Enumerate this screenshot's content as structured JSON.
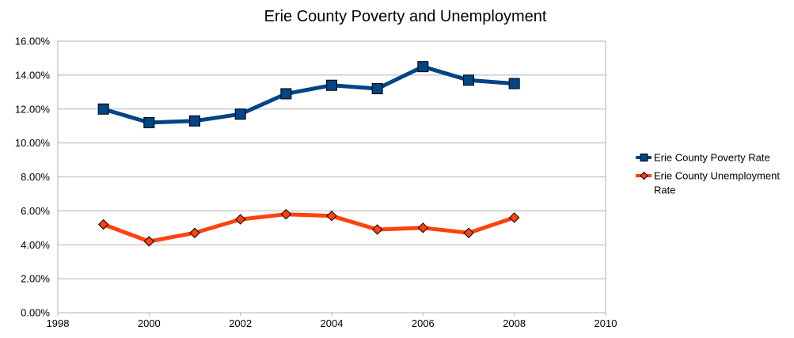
{
  "chart_data": {
    "type": "line",
    "title": "Erie County Poverty and Unemployment",
    "xlabel": "",
    "ylabel": "",
    "xlim": [
      1998,
      2010
    ],
    "ylim": [
      0,
      0.16
    ],
    "x_ticks": [
      1998,
      2000,
      2002,
      2004,
      2006,
      2008,
      2010
    ],
    "x_tick_labels": [
      "1998",
      "2000",
      "2002",
      "2004",
      "2006",
      "2008",
      "2010"
    ],
    "y_ticks": [
      0,
      0.02,
      0.04,
      0.06,
      0.08,
      0.1,
      0.12,
      0.14,
      0.16
    ],
    "y_tick_labels": [
      "0.00%",
      "2.00%",
      "4.00%",
      "6.00%",
      "8.00%",
      "10.00%",
      "12.00%",
      "14.00%",
      "16.00%"
    ],
    "grid": "horizontal",
    "legend_position": "right",
    "x": [
      1999,
      2000,
      2001,
      2002,
      2003,
      2004,
      2005,
      2006,
      2007,
      2008
    ],
    "series": [
      {
        "name": "Erie County Poverty Rate",
        "color": "#004586",
        "marker": "square",
        "values": [
          0.12,
          0.112,
          0.113,
          0.117,
          0.129,
          0.134,
          0.132,
          0.145,
          0.137,
          0.135
        ]
      },
      {
        "name": "Erie County Unemployment Rate",
        "legend_lines": [
          "Erie County Unemployment",
          "Rate"
        ],
        "color": "#ff420e",
        "marker": "diamond",
        "values": [
          0.052,
          0.042,
          0.047,
          0.055,
          0.058,
          0.057,
          0.049,
          0.05,
          0.047,
          0.056
        ]
      }
    ]
  }
}
